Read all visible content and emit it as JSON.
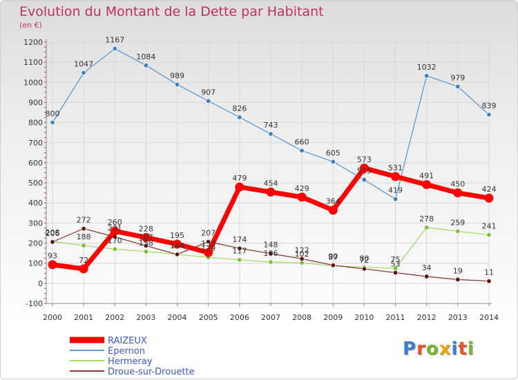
{
  "header": {
    "title": "Evolution du Montant de la Dette par Habitant",
    "unit": "(en €)"
  },
  "logo": {
    "text": "Proxiti",
    "letter_colors": [
      "#3a7fcf",
      "#e8532b",
      "#79b530",
      "#e7a614",
      "#3a7fcf",
      "#e8532b",
      "#79b530"
    ]
  },
  "chart_data": {
    "type": "line",
    "title": "Evolution du Montant de la Dette par Habitant",
    "ylabel": "(en €)",
    "ylim": [
      -100,
      1200
    ],
    "yticks": [
      -100,
      0,
      100,
      200,
      300,
      400,
      500,
      600,
      700,
      800,
      900,
      1000,
      1100,
      1200
    ],
    "grid": true,
    "legend_position": "bottom-left",
    "categories": [
      "2000",
      "2001",
      "2002",
      "2003",
      "2004",
      "2005",
      "2006",
      "2007",
      "2008",
      "2009",
      "2010",
      "2011",
      "2012",
      "2013",
      "2014"
    ],
    "series": [
      {
        "name": "Epernon",
        "color": "#5a9bd4",
        "marker": "#3d7fc0",
        "thick": false,
        "values": [
          800,
          1047,
          1167,
          1084,
          989,
          907,
          826,
          743,
          660,
          605,
          515,
          419,
          1032,
          979,
          839
        ],
        "labels": [
          "800",
          "1047",
          "1167",
          "1084",
          "989",
          "907",
          "826",
          "743",
          "660",
          "605",
          "515",
          "419",
          "1032",
          "979",
          "839"
        ]
      },
      {
        "name": "Hermeray",
        "color": "#a4dc6a",
        "marker": "#7dc03a",
        "thick": false,
        "values": [
          208,
          188,
          170,
          158,
          144,
          129,
          117,
          106,
          102,
          87,
          80,
          75,
          278,
          259,
          241
        ],
        "labels": [
          "208",
          "188",
          "170",
          "158",
          "144",
          "129",
          "117",
          "106",
          "102",
          "87",
          "80",
          "75",
          "278",
          "259",
          "241"
        ]
      },
      {
        "name": "Droue-sur-Drouette",
        "color": "#8b3a3a",
        "marker": "#5e1414",
        "thick": false,
        "values": [
          206,
          272,
          231,
          187,
          144,
          207,
          174,
          148,
          122,
          90,
          72,
          53,
          34,
          19,
          11
        ],
        "labels": [
          "206",
          "272",
          "231",
          "187",
          "144",
          "207",
          "174",
          "148",
          "122",
          "90",
          "72",
          "53",
          "34",
          "19",
          "11"
        ]
      },
      {
        "name": "RAIZEUX",
        "color": "#ff0000",
        "marker": "#ff0000",
        "thick": true,
        "values": [
          93,
          72,
          260,
          228,
          195,
          153,
          479,
          454,
          429,
          364,
          573,
          531,
          491,
          450,
          424
        ],
        "labels": [
          "93",
          "72",
          "260",
          "228",
          "195",
          "153",
          "479",
          "454",
          "429",
          "364",
          "573",
          "531",
          "491",
          "450",
          "424"
        ]
      }
    ],
    "legend": [
      "RAIZEUX",
      "Epernon",
      "Hermeray",
      "Droue-sur-Drouette"
    ],
    "legend_colors": [
      "#ff0000",
      "#5a9bd4",
      "#a4dc6a",
      "#8b3a3a"
    ]
  }
}
